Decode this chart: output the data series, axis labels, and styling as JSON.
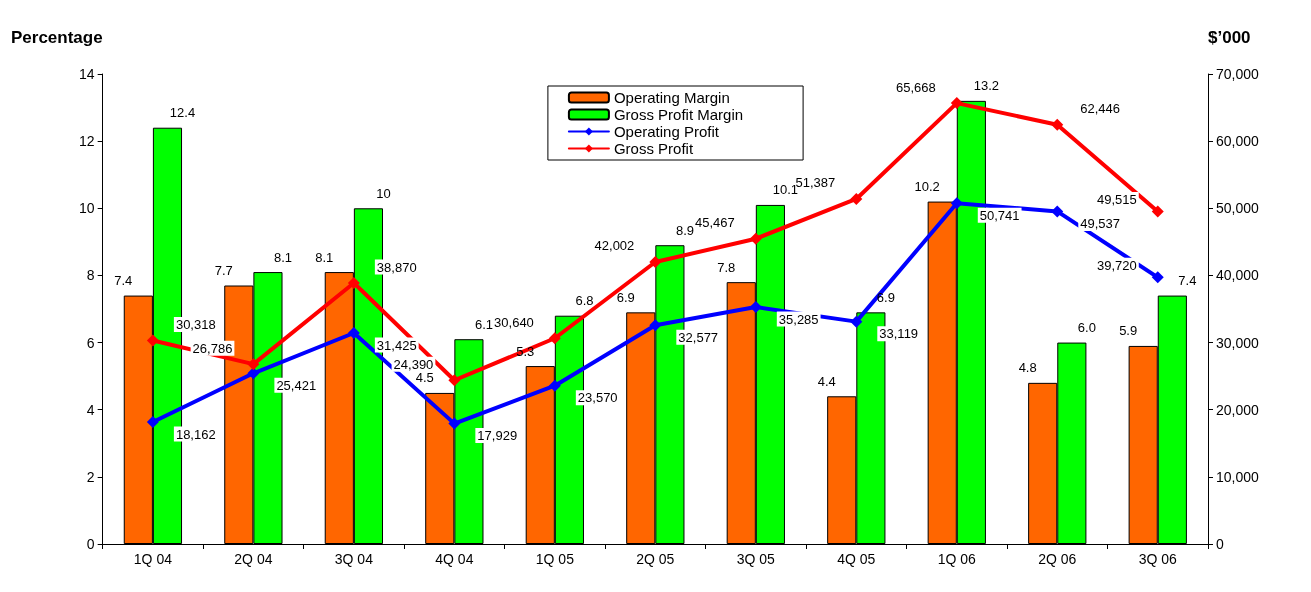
{
  "chart_data": {
    "type": "bar",
    "ylabel": "Percentage",
    "y2label": "$’000",
    "categories": [
      "1Q 04",
      "2Q 04",
      "3Q 04",
      "4Q 04",
      "1Q 05",
      "2Q 05",
      "3Q 05",
      "4Q 05",
      "1Q 06",
      "2Q 06",
      "3Q 06"
    ],
    "series": [
      {
        "name": "Operating Margin",
        "type": "bar",
        "color": "#ff6600",
        "values": [
          7.4,
          7.7,
          8.1,
          4.5,
          5.3,
          6.9,
          7.8,
          4.4,
          10.2,
          4.8,
          5.9
        ],
        "value_labels": [
          "7.4",
          "7.7",
          "8.1",
          "4.5",
          "5.3",
          "6.9",
          "7.8",
          "4.4",
          "10.2",
          "4.8",
          "5.9"
        ]
      },
      {
        "name": "Gross Profit Margin",
        "type": "bar",
        "color": "#00ff00",
        "values": [
          12.4,
          8.1,
          10,
          6.1,
          6.8,
          8.9,
          10.1,
          6.9,
          13.2,
          6.0,
          7.4
        ],
        "value_labels": [
          "12.4",
          "8.1",
          "10",
          "6.1",
          "6.8",
          "8.9",
          "10.1",
          "6.9",
          "13.2",
          "6.0",
          "7.4"
        ]
      },
      {
        "name": "Operating Profit",
        "type": "line",
        "axis": "y2",
        "color": "#0000ff",
        "values": [
          18162,
          25421,
          31425,
          17929,
          23570,
          32577,
          35285,
          33119,
          50741,
          49537,
          39720
        ],
        "value_labels": [
          "18,162",
          "25,421",
          "31,425",
          "17,929",
          "23,570",
          "32,577",
          "35,285",
          "33,119",
          "50,741",
          "49,537",
          "39,720"
        ]
      },
      {
        "name": "Gross Profit",
        "type": "line",
        "axis": "y2",
        "color": "#ff0000",
        "values": [
          30318,
          26786,
          38870,
          24390,
          30640,
          42002,
          45467,
          51387,
          65668,
          62446,
          49515
        ],
        "value_labels": [
          "30,318",
          "26,786",
          "38,870",
          "24,390",
          "30,640",
          "42,002",
          "45,467",
          "51,387",
          "65,668",
          "62,446",
          "49,515"
        ]
      }
    ],
    "ylim": [
      0,
      14
    ],
    "yticks": [
      0,
      2,
      4,
      6,
      8,
      10,
      12,
      14
    ],
    "y2lim": [
      0,
      70000
    ],
    "y2ticks": [
      {
        "value": 0,
        "label": "0"
      },
      {
        "value": 10000,
        "label": "10,000"
      },
      {
        "value": 20000,
        "label": "20,000"
      },
      {
        "value": 30000,
        "label": "30,000"
      },
      {
        "value": 40000,
        "label": "40,000"
      },
      {
        "value": 50000,
        "label": "50,000"
      },
      {
        "value": 60000,
        "label": "60,000"
      },
      {
        "value": 70000,
        "label": "70,000"
      }
    ],
    "grid": false,
    "legend": "top",
    "marker": "diamond",
    "line_style": "solid"
  }
}
